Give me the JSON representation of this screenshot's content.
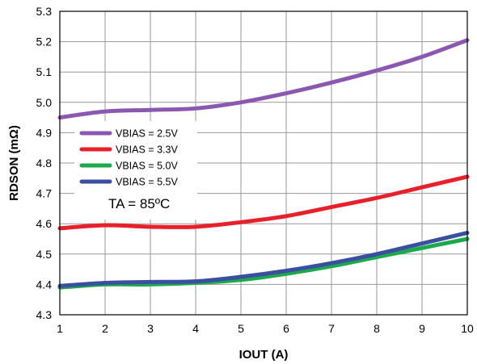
{
  "chart_data": {
    "type": "line",
    "xlabel": "IOUT (A)",
    "ylabel": "RDSON (mΩ)",
    "xlim": [
      1,
      10
    ],
    "ylim": [
      4.3,
      5.3
    ],
    "xticks": [
      "1",
      "2",
      "3",
      "4",
      "5",
      "6",
      "7",
      "8",
      "9",
      "10"
    ],
    "yticks": [
      "4.3",
      "4.4",
      "4.5",
      "4.6",
      "4.7",
      "4.8",
      "4.9",
      "5.0",
      "5.1",
      "5.2",
      "5.3"
    ],
    "grid": true,
    "legend_position": "left",
    "annotation": "TA = 85ºC",
    "x": [
      1,
      2,
      3,
      4,
      5,
      6,
      7,
      8,
      9,
      10
    ],
    "series": [
      {
        "name": "VBIAS = 2.5V",
        "color": "#8a58b0",
        "values": [
          4.95,
          4.97,
          4.975,
          4.98,
          5.0,
          5.03,
          5.065,
          5.105,
          5.15,
          5.205
        ]
      },
      {
        "name": "VBIAS = 3.3V",
        "color": "#e8202a",
        "values": [
          4.585,
          4.595,
          4.59,
          4.59,
          4.605,
          4.625,
          4.655,
          4.685,
          4.72,
          4.755
        ]
      },
      {
        "name": "VBIAS = 5.0V",
        "color": "#1aaa4a",
        "values": [
          4.39,
          4.4,
          4.4,
          4.405,
          4.415,
          4.435,
          4.46,
          4.49,
          4.52,
          4.55
        ]
      },
      {
        "name": "VBIAS = 5.5V",
        "color": "#3a4fa0",
        "values": [
          4.395,
          4.405,
          4.408,
          4.41,
          4.425,
          4.445,
          4.47,
          4.5,
          4.535,
          4.57
        ]
      }
    ]
  }
}
